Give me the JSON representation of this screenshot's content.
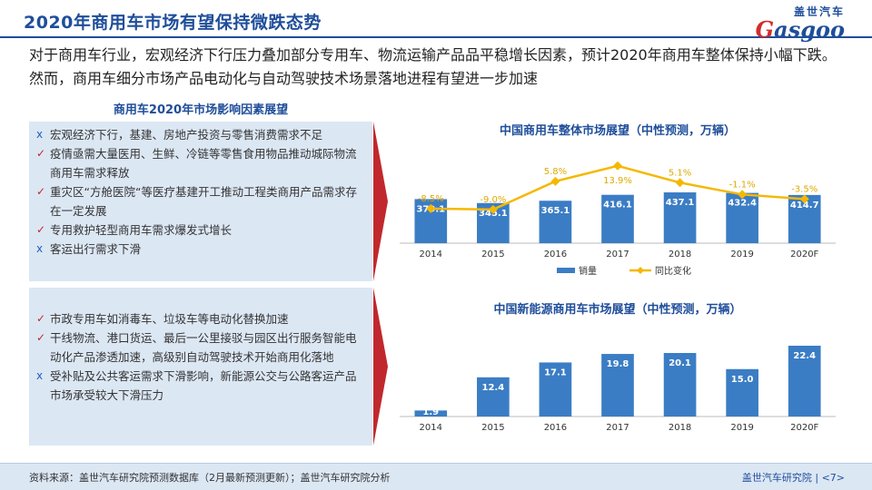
{
  "header": {
    "title": "2020年商用车市场有望保持微跌态势",
    "logo_cn": "盖世汽车",
    "logo_en_first": "G",
    "logo_en_rest": "asgoo"
  },
  "intro": "对于商用车行业，宏观经济下行压力叠加部分专用车、物流运输产品品平稳增长因素，预计2020年商用车整体保持小幅下跌。然而，商用车细分市场产品电动化与自动驾驶技术场景落地进程有望进一步加速",
  "factors": {
    "title": "商用车2020年市场影响因素展望",
    "box1": [
      {
        "mark": "x",
        "text": "宏观经济下行，基建、房地产投资与零售消费需求不足"
      },
      {
        "mark": "✓",
        "text": "疫情亟需大量医用、生鲜、冷链等零售食用物品推动城际物流商用车需求释放"
      },
      {
        "mark": "✓",
        "text": "重灾区“方舱医院“等医疗基建开工推动工程类商用产品需求存在一定发展"
      },
      {
        "mark": "✓",
        "text": "专用救护轻型商用车需求爆发式增长"
      },
      {
        "mark": "x",
        "text": "客运出行需求下滑"
      }
    ],
    "box2": [
      {
        "mark": "✓",
        "text": "市政专用车如消毒车、垃圾车等电动化替换加速"
      },
      {
        "mark": "✓",
        "text": "干线物流、港口货运、最后一公里接驳与园区出行服务智能电动化产品渗透加速，高级别自动驾驶技术开始商用化落地"
      },
      {
        "mark": "x",
        "text": "受补贴及公共客运需求下滑影响，新能源公交与公路客运产品市场承受较大下滑压力"
      }
    ]
  },
  "chart_data": [
    {
      "type": "bar+line",
      "title": "中国商用车整体市场展望（中性预测，万辆）",
      "categories": [
        "2014",
        "2015",
        "2016",
        "2017",
        "2018",
        "2019",
        "2020F"
      ],
      "series": [
        {
          "name": "销量",
          "type": "bar",
          "values": [
            379.1,
            345.1,
            365.1,
            416.1,
            437.1,
            432.4,
            414.7
          ],
          "labels": [
            "379.1",
            "345.1",
            "365.1",
            "416.1",
            "437.1",
            "432.4",
            "414.7"
          ]
        },
        {
          "name": "同比变化",
          "type": "line",
          "values": [
            -8.5,
            -9.0,
            5.8,
            13.9,
            5.1,
            -1.1,
            -3.5
          ],
          "labels": [
            "-8.5%",
            "-9.0%",
            "5.8%",
            "13.9%",
            "5.1%",
            "-1.1%",
            "-3.5%"
          ]
        }
      ],
      "legend": "bottom",
      "colors": {
        "bar": "#3b7dc4",
        "line": "#f5b800"
      }
    },
    {
      "type": "bar",
      "title": "中国新能源商用车市场展望（中性预测，万辆）",
      "categories": [
        "2014",
        "2015",
        "2016",
        "2017",
        "2018",
        "2019",
        "2020F"
      ],
      "series": [
        {
          "name": "",
          "type": "bar",
          "values": [
            1.9,
            12.4,
            17.1,
            19.8,
            20.1,
            15.0,
            22.4
          ],
          "labels": [
            "1.9",
            "12.4",
            "17.1",
            "19.8",
            "20.1",
            "15.0",
            "22.4"
          ]
        }
      ],
      "colors": {
        "bar": "#3b7dc4"
      }
    }
  ],
  "footer": {
    "source": "资料来源：盖世汽车研究院预测数据库（2月最新预测更新）；盖世汽车研究院分析",
    "org": "盖世汽车研究院",
    "page": "<7>"
  }
}
